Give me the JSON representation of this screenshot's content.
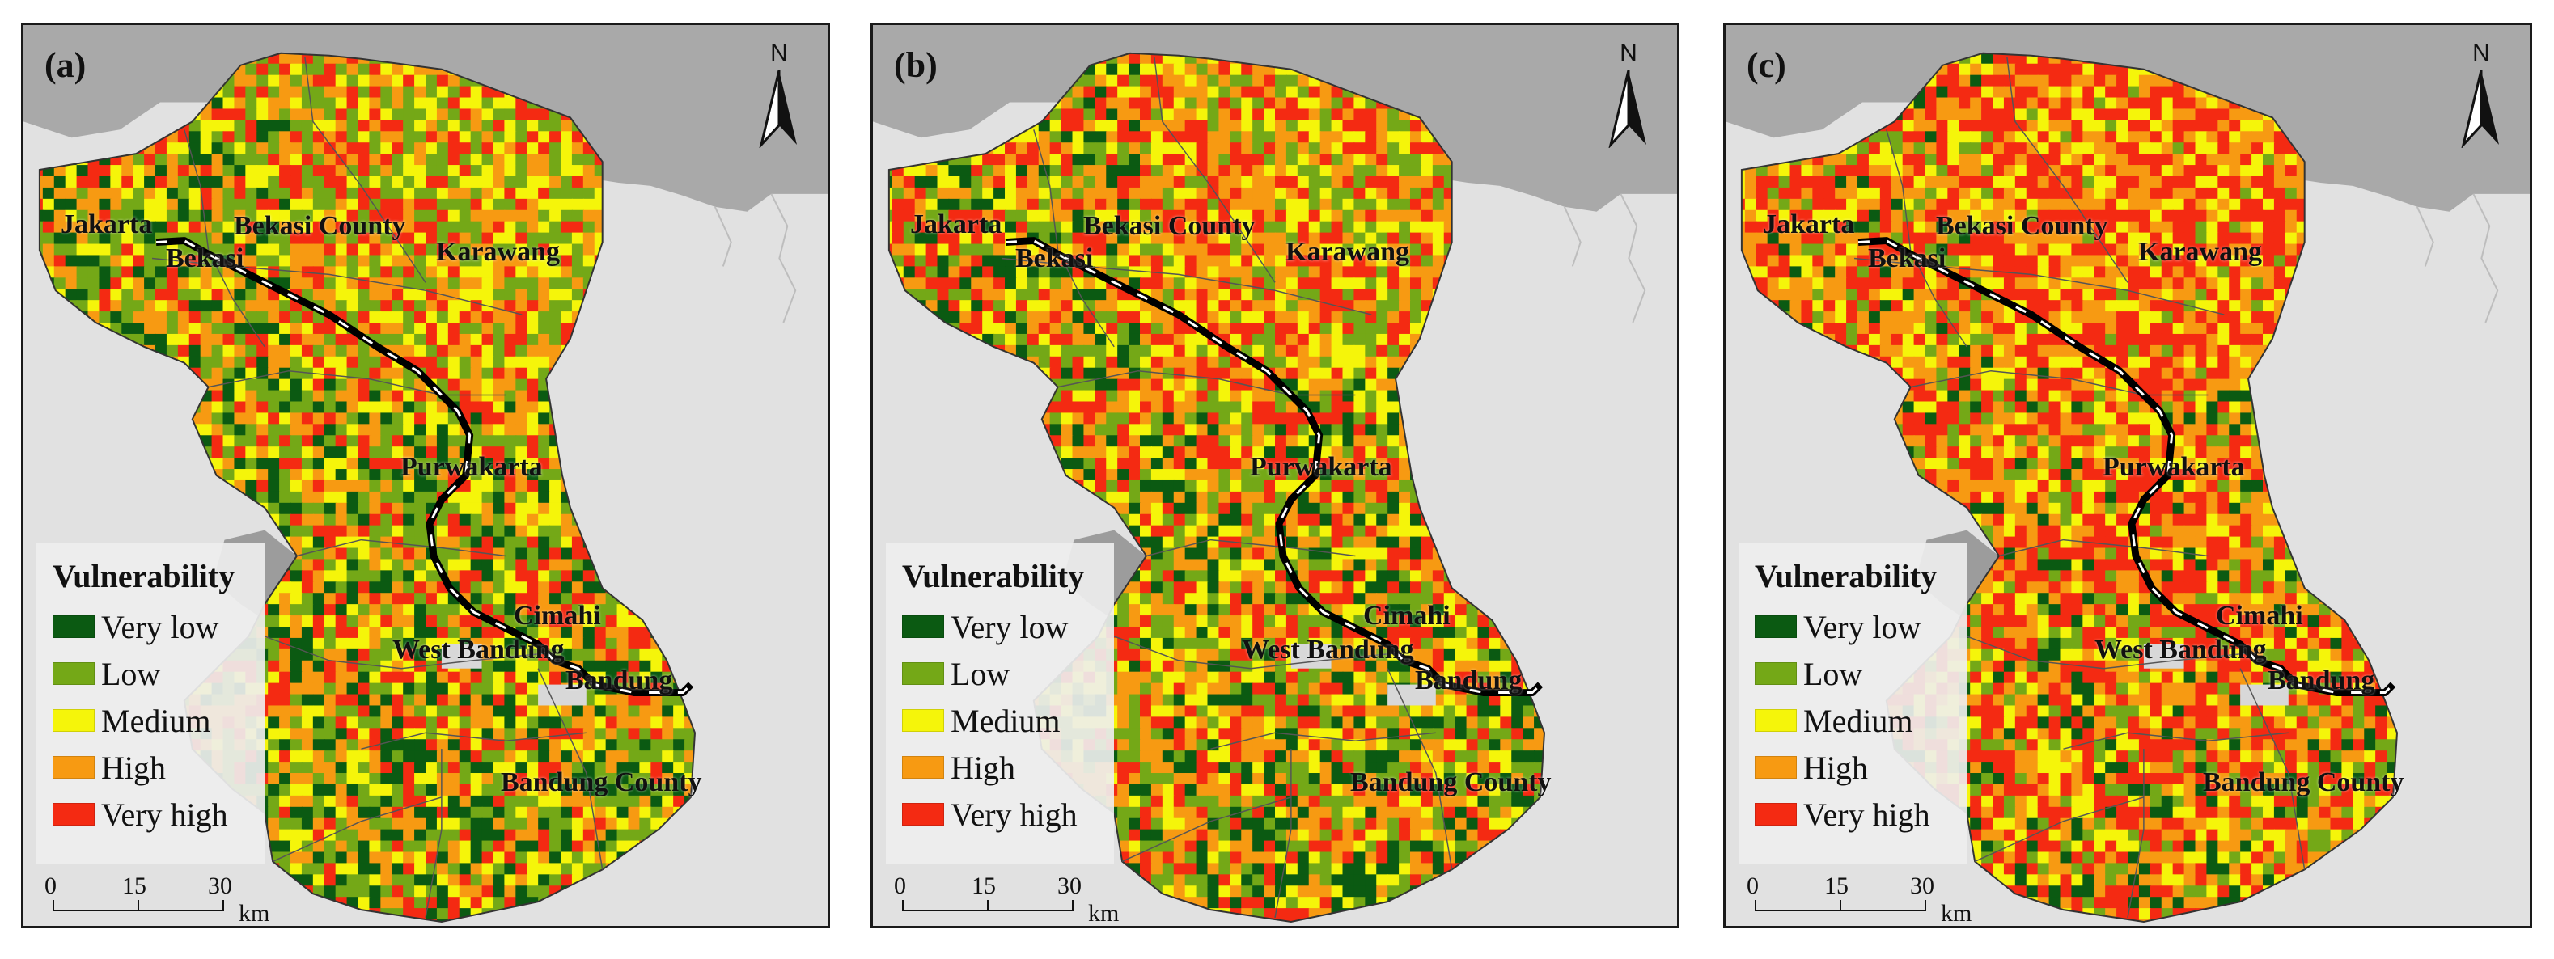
{
  "legend": {
    "title": "Vulnerability",
    "classes": [
      {
        "label": "Very low",
        "color": "#0b5a12"
      },
      {
        "label": "Low",
        "color": "#74a817"
      },
      {
        "label": "Medium",
        "color": "#f5f50a"
      },
      {
        "label": "High",
        "color": "#f79a12"
      },
      {
        "label": "Very high",
        "color": "#f42a12"
      }
    ]
  },
  "scale": {
    "ticks": [
      "0",
      "15",
      "30"
    ],
    "unit": "km"
  },
  "north_label": "N",
  "places": {
    "jakarta": "Jakarta",
    "bekasi": "Bekasi",
    "bekasi_county": "Bekasi County",
    "karawang": "Karawang",
    "purwakarta": "Purwakarta",
    "cimahi": "Cimahi",
    "west_bandung": "West Bandung",
    "bandung": "Bandung",
    "bandung_county": "Bandung County"
  },
  "panels": [
    {
      "label": "(a)",
      "mix": [
        0.18,
        0.24,
        0.18,
        0.2,
        0.2
      ]
    },
    {
      "label": "(b)",
      "mix": [
        0.14,
        0.22,
        0.18,
        0.22,
        0.24
      ]
    },
    {
      "label": "(c)",
      "mix": [
        0.07,
        0.14,
        0.18,
        0.25,
        0.36
      ]
    }
  ],
  "colors": {
    "sea": "#a9a9a9",
    "land_outside": "#e1e1e1",
    "water_body": "#9c9c9c",
    "railway": "#000000"
  }
}
